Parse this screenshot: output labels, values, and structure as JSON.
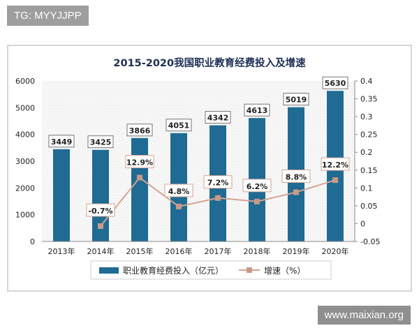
{
  "watermark_top": "TG: MYYJJPP",
  "watermark_bottom": "www.maixian.org",
  "chart_data": {
    "type": "bar",
    "title": "2015-2020我国职业教育经费投入及增速",
    "categories": [
      "2013年",
      "2014年",
      "2015年",
      "2016年",
      "2017年",
      "2018年",
      "2019年",
      "2020年"
    ],
    "series": [
      {
        "name": "职业教育经费投入（亿元）",
        "type": "bar",
        "axis": "left",
        "values": [
          3449,
          3425,
          3866,
          4051,
          4342,
          4613,
          5019,
          5630
        ],
        "labels": [
          "3449",
          "3425",
          "3866",
          "4051",
          "4342",
          "4613",
          "5019",
          "5630"
        ],
        "color": "#1f6b93"
      },
      {
        "name": "增速（%）",
        "type": "line",
        "axis": "right",
        "values": [
          null,
          -0.007,
          0.129,
          0.048,
          0.072,
          0.062,
          0.088,
          0.122
        ],
        "labels": [
          "",
          "-0.7%",
          "12.9%",
          "4.8%",
          "7.2%",
          "6.2%",
          "8.8%",
          "12.2%"
        ],
        "color": "#d7a492"
      }
    ],
    "y_left": {
      "min": 0,
      "max": 6000,
      "ticks": [
        "0",
        "1000",
        "2000",
        "3000",
        "4000",
        "5000",
        "6000"
      ]
    },
    "y_right": {
      "min": -0.05,
      "max": 0.4,
      "ticks": [
        "-0.05",
        "0",
        "0.05",
        "0.1",
        "0.15",
        "0.2",
        "0.25",
        "0.3",
        "0.35",
        "0.4"
      ]
    },
    "legend_position": "bottom",
    "grid": false
  }
}
